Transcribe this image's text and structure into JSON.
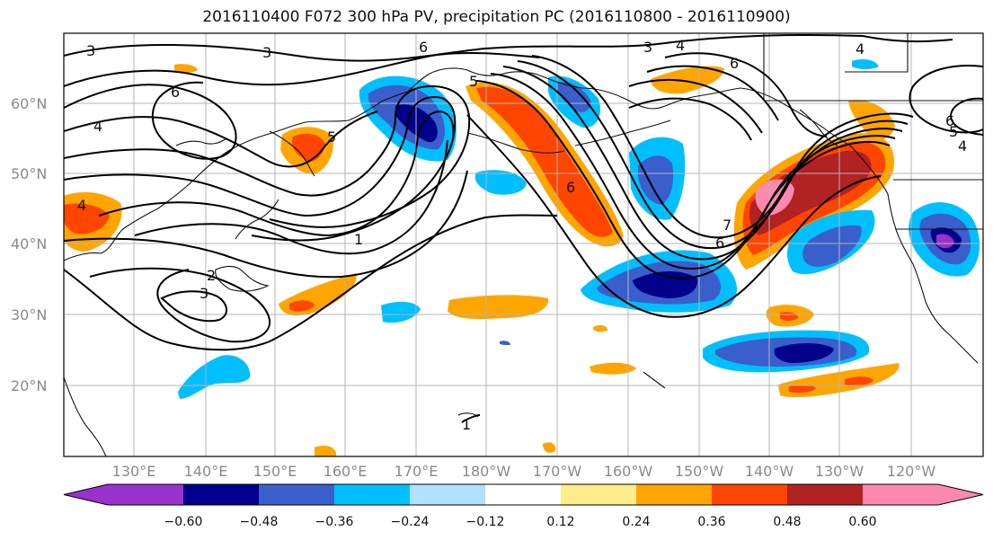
{
  "title": "2016110400 F072 300 hPa PV, precipitation PC (2016110800 - 2016110900)",
  "map": {
    "lat_labels": [
      "60°N",
      "50°N",
      "40°N",
      "30°N",
      "20°N"
    ],
    "lon_labels": [
      "130°E",
      "140°E",
      "150°E",
      "160°E",
      "170°E",
      "180°W",
      "170°W",
      "160°W",
      "150°W",
      "140°W",
      "130°W",
      "120°W"
    ],
    "contour_labels": [
      "3",
      "3",
      "6",
      "3",
      "4",
      "6",
      "6",
      "4",
      "4",
      "5",
      "6",
      "4",
      "5",
      "1",
      "2",
      "3",
      "6",
      "7",
      "1",
      "5",
      "4",
      "6"
    ]
  },
  "colorbar": {
    "ticks": [
      "−0.60",
      "−0.48",
      "−0.36",
      "−0.24",
      "−0.12",
      "0.12",
      "0.24",
      "0.36",
      "0.48",
      "0.60"
    ],
    "colors": [
      "#9932cc",
      "#00008b",
      "#3a5fcd",
      "#00bfff",
      "#b0e2ff",
      "#ffffff",
      "#ffec8b",
      "#ffa500",
      "#ff4500",
      "#b22222",
      "#ff88b0"
    ]
  }
}
